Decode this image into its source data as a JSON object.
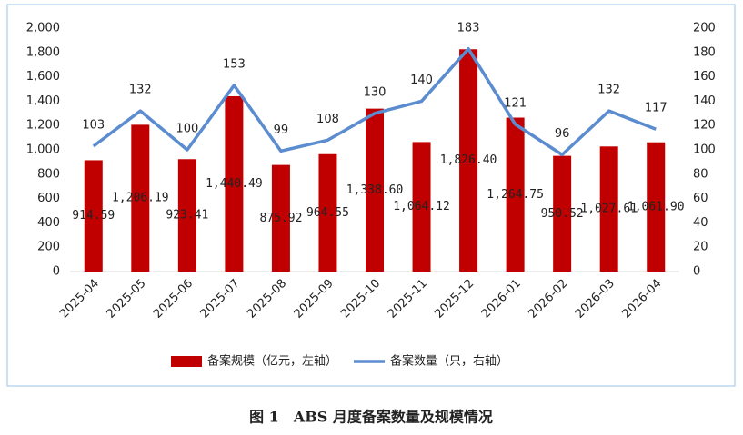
{
  "chart_data": {
    "type": "bar-line",
    "categories": [
      "2025-04",
      "2025-05",
      "2025-06",
      "2025-07",
      "2025-08",
      "2025-09",
      "2025-10",
      "2025-11",
      "2025-12",
      "2026-01",
      "2026-02",
      "2026-03",
      "2026-04"
    ],
    "series": [
      {
        "name": "备案规模（亿元，左轴）",
        "type": "bar",
        "color": "#c00000",
        "values": [
          914.59,
          1206.19,
          923.41,
          1440.49,
          875.92,
          964.55,
          1338.6,
          1064.12,
          1826.4,
          1264.75,
          950.52,
          1027.61,
          1061.9
        ],
        "value_labels": [
          "914.59",
          "1,206.19",
          "923.41",
          "1,440.49",
          "875.92",
          "964.55",
          "1,338.60",
          "1,064.12",
          "1,826.40",
          "1,264.75",
          "950.52",
          "1,027.61",
          "1,061.90"
        ]
      },
      {
        "name": "备案数量（只，右轴）",
        "type": "line",
        "axis": "y2",
        "color": "#5b8ccf",
        "values": [
          103,
          132,
          100,
          153,
          99,
          108,
          130,
          140,
          183,
          121,
          96,
          132,
          117
        ]
      }
    ],
    "ylim": [
      0,
      2000
    ],
    "yticks": [
      0,
      200,
      400,
      600,
      800,
      {
        "value": 1000,
        "label": "1,000"
      },
      {
        "value": 1200,
        "label": "1,200"
      },
      {
        "value": 1400,
        "label": "1,400"
      },
      {
        "value": 1600,
        "label": "1,600"
      },
      {
        "value": 1800,
        "label": "1,800"
      },
      {
        "value": 2000,
        "label": "2,000"
      }
    ],
    "y2lim": [
      0,
      200
    ],
    "y2ticks": [
      0,
      20,
      40,
      60,
      80,
      100,
      120,
      140,
      160,
      180,
      200
    ],
    "caption": "图 1　ABS 月度备案数量及规模情况"
  }
}
